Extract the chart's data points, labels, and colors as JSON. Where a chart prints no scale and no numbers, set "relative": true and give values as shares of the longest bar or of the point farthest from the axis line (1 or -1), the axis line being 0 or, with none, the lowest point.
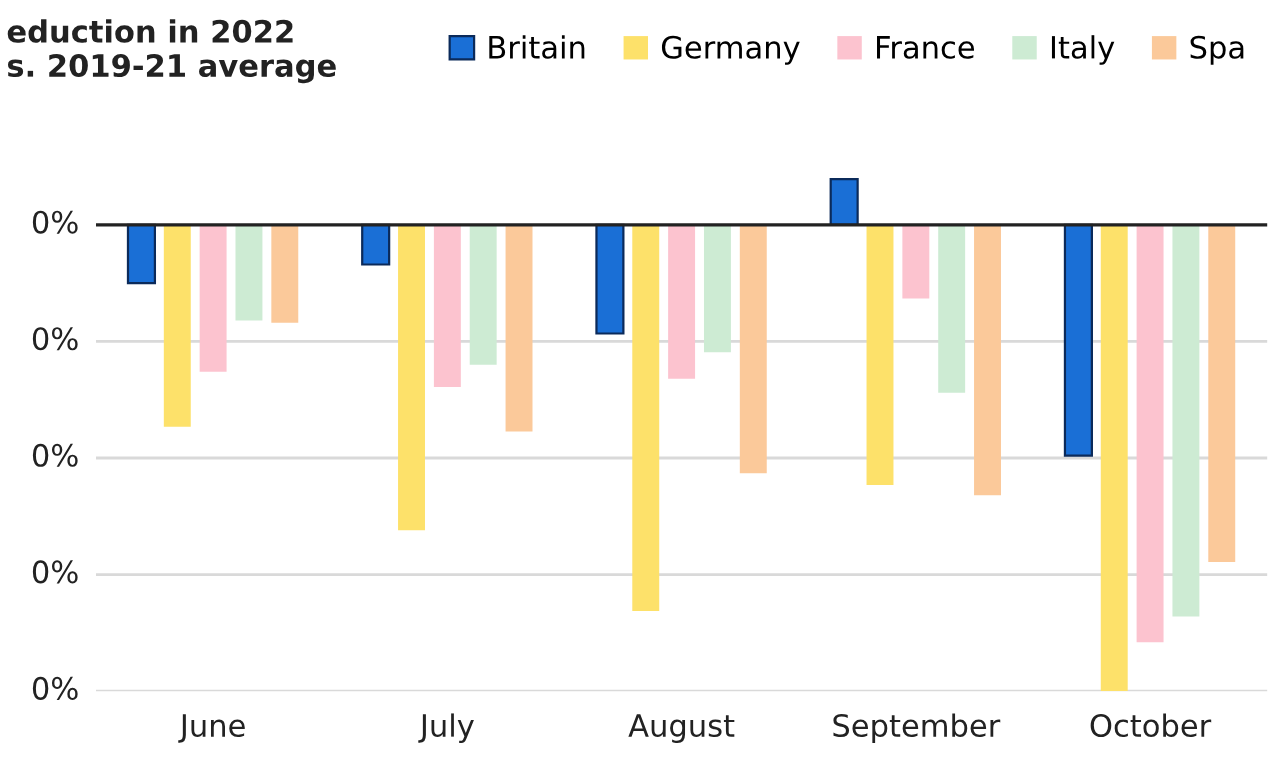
{
  "chart_data": {
    "type": "bar",
    "title": "eduction in 2022\ns. 2019-21 average",
    "categories": [
      "June",
      "July",
      "August",
      "September",
      "October"
    ],
    "series": [
      {
        "name": "Britain",
        "color": "#1a6fd6",
        "values": [
          -0.125,
          -0.085,
          -0.233,
          0.098,
          -0.495
        ]
      },
      {
        "name": "Germany",
        "color": "#fde16a",
        "values": [
          -0.433,
          -0.655,
          -0.828,
          -0.558,
          -1
        ]
      },
      {
        "name": "France",
        "color": "#fcc3cf",
        "values": [
          -0.315,
          -0.348,
          -0.33,
          -0.158,
          -0.895
        ]
      },
      {
        "name": "Italy",
        "color": "#cdebd3",
        "values": [
          -0.205,
          -0.3,
          -0.273,
          -0.36,
          -0.84
        ]
      },
      {
        "name": "Spa",
        "color": "#fbc99a",
        "values": [
          -0.21,
          -0.443,
          -0.533,
          -0.58,
          -0.723
        ]
      }
    ],
    "relative": true,
    "annotations": [
      "0%",
      "0%",
      "0%",
      "0%",
      "0%"
    ],
    "grid": "y",
    "legend": "top right"
  }
}
